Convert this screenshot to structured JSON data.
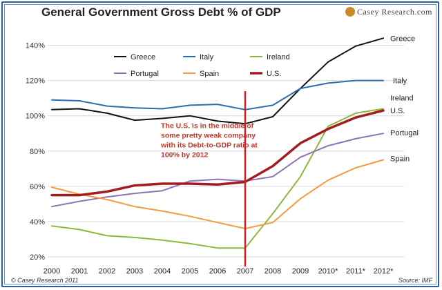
{
  "header": {
    "title": "General Government Gross Debt % of GDP",
    "logo": "Casey Research.com"
  },
  "footer": {
    "copyright": "© Casey Research 2011",
    "source": "Source: IMF"
  },
  "annotation": {
    "lines": [
      "The U.S. is in the middle of",
      "some pretty weak company",
      "with its Debt-to-GDP ratio at",
      "100% by 2012"
    ],
    "color": "#c0392b"
  },
  "chart_data": {
    "type": "line",
    "title": "General Government Gross Debt % of GDP",
    "xlabel": "",
    "ylabel": "",
    "categories": [
      "2000",
      "2001",
      "2002",
      "2003",
      "2004",
      "2005",
      "2006",
      "2007",
      "2008",
      "2009",
      "2010*",
      "2011*",
      "2012*"
    ],
    "ylim": [
      20,
      150
    ],
    "yticks": [
      20,
      40,
      60,
      80,
      100,
      120,
      140
    ],
    "ytick_labels": [
      "20%",
      "40%",
      "60%",
      "80%",
      "100%",
      "120%",
      "140%"
    ],
    "grid": true,
    "marker_line": {
      "category": "2007",
      "color": "#cc1f1f"
    },
    "series": [
      {
        "name": "Greece",
        "color": "#111111",
        "end_label": "Greece",
        "values": [
          103.5,
          104,
          101.5,
          97.5,
          98.5,
          100,
          97,
          95.5,
          99.5,
          115.5,
          130.5,
          139.5,
          144
        ]
      },
      {
        "name": "Italy",
        "color": "#2b6cb0",
        "end_label": "Italy",
        "values": [
          109,
          108.5,
          105.5,
          104.5,
          104,
          106,
          106.5,
          103.5,
          106,
          115.5,
          118.5,
          120,
          120
        ]
      },
      {
        "name": "Ireland",
        "color": "#8cb83a",
        "end_label": "Ireland",
        "values": [
          37.5,
          35.5,
          32,
          31,
          29.5,
          27.5,
          25,
          25,
          44.5,
          65.5,
          94,
          101.5,
          104
        ]
      },
      {
        "name": "Portugal",
        "color": "#8e72b5",
        "end_label": "Portugal",
        "values": [
          48.5,
          51.5,
          54,
          56,
          57.5,
          63,
          64,
          63,
          65.5,
          76.5,
          83,
          87,
          90
        ]
      },
      {
        "name": "Spain",
        "color": "#f39a3c",
        "end_label": "Spain",
        "values": [
          59.5,
          55.5,
          52.5,
          48.5,
          46,
          43,
          39.5,
          36,
          39.5,
          53,
          63.5,
          70.5,
          75
        ]
      },
      {
        "name": "U.S.",
        "color": "#a31c22",
        "end_label": "U.S.",
        "thick": true,
        "values": [
          55,
          55,
          57,
          60.5,
          61.5,
          61.5,
          61,
          62.5,
          71.5,
          84.5,
          92.5,
          99,
          103
        ]
      }
    ],
    "legend_position": "top-left"
  }
}
